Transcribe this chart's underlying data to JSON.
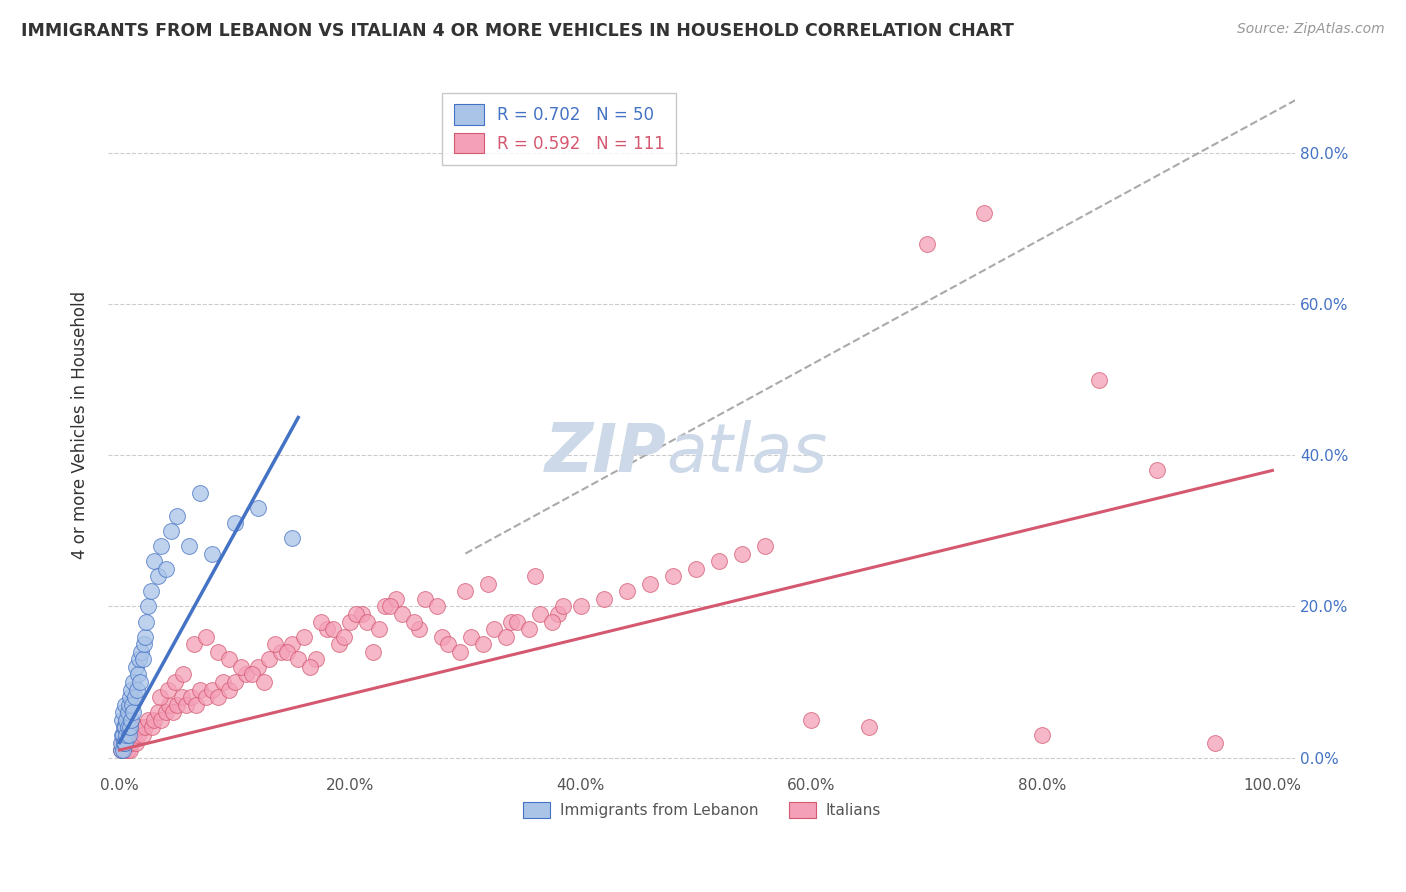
{
  "title": "IMMIGRANTS FROM LEBANON VS ITALIAN 4 OR MORE VEHICLES IN HOUSEHOLD CORRELATION CHART",
  "source": "Source: ZipAtlas.com",
  "ylabel": "4 or more Vehicles in Household",
  "xticklabels": [
    "0.0%",
    "20.0%",
    "40.0%",
    "60.0%",
    "80.0%",
    "100.0%"
  ],
  "yticklabels": [
    "0.0%",
    "20.0%",
    "40.0%",
    "60.0%",
    "80.0%"
  ],
  "legend_blue_label": "R = 0.702   N = 50",
  "legend_pink_label": "R = 0.592   N = 111",
  "legend_bottom_blue": "Immigrants from Lebanon",
  "legend_bottom_pink": "Italians",
  "blue_color": "#aac4e8",
  "blue_line_color": "#4472c4",
  "blue_edge_color": "#4472c4",
  "pink_color": "#f4a0b8",
  "pink_line_color": "#d45870",
  "pink_edge_color": "#d45870",
  "watermark_color": "#cdd9e8",
  "background_color": "#ffffff",
  "grid_color": "#cccccc",
  "dash_line_color": "#aaaaaa",
  "blue_scatter_x": [
    0.001,
    0.001,
    0.002,
    0.002,
    0.003,
    0.003,
    0.003,
    0.004,
    0.004,
    0.005,
    0.005,
    0.005,
    0.006,
    0.006,
    0.007,
    0.007,
    0.008,
    0.008,
    0.009,
    0.009,
    0.01,
    0.01,
    0.011,
    0.012,
    0.012,
    0.013,
    0.014,
    0.015,
    0.016,
    0.017,
    0.018,
    0.019,
    0.02,
    0.021,
    0.022,
    0.023,
    0.025,
    0.027,
    0.03,
    0.033,
    0.036,
    0.04,
    0.045,
    0.05,
    0.06,
    0.07,
    0.08,
    0.1,
    0.12,
    0.15
  ],
  "blue_scatter_y": [
    0.01,
    0.02,
    0.03,
    0.05,
    0.01,
    0.03,
    0.06,
    0.02,
    0.04,
    0.02,
    0.04,
    0.07,
    0.03,
    0.05,
    0.04,
    0.06,
    0.03,
    0.07,
    0.04,
    0.08,
    0.05,
    0.09,
    0.07,
    0.06,
    0.1,
    0.08,
    0.12,
    0.09,
    0.11,
    0.13,
    0.1,
    0.14,
    0.13,
    0.15,
    0.16,
    0.18,
    0.2,
    0.22,
    0.26,
    0.24,
    0.28,
    0.25,
    0.3,
    0.32,
    0.28,
    0.35,
    0.27,
    0.31,
    0.33,
    0.29
  ],
  "pink_scatter_x": [
    0.001,
    0.002,
    0.003,
    0.004,
    0.005,
    0.006,
    0.007,
    0.008,
    0.009,
    0.01,
    0.012,
    0.014,
    0.016,
    0.018,
    0.02,
    0.022,
    0.025,
    0.028,
    0.03,
    0.033,
    0.036,
    0.04,
    0.043,
    0.046,
    0.05,
    0.054,
    0.058,
    0.062,
    0.066,
    0.07,
    0.075,
    0.08,
    0.085,
    0.09,
    0.095,
    0.1,
    0.11,
    0.12,
    0.13,
    0.14,
    0.15,
    0.16,
    0.17,
    0.18,
    0.19,
    0.2,
    0.21,
    0.22,
    0.23,
    0.24,
    0.26,
    0.28,
    0.3,
    0.32,
    0.34,
    0.36,
    0.38,
    0.4,
    0.42,
    0.44,
    0.46,
    0.48,
    0.5,
    0.52,
    0.54,
    0.56,
    0.6,
    0.65,
    0.7,
    0.75,
    0.8,
    0.85,
    0.9,
    0.95,
    0.035,
    0.042,
    0.048,
    0.055,
    0.065,
    0.075,
    0.085,
    0.095,
    0.105,
    0.115,
    0.125,
    0.135,
    0.145,
    0.155,
    0.165,
    0.175,
    0.185,
    0.195,
    0.205,
    0.215,
    0.225,
    0.235,
    0.245,
    0.255,
    0.265,
    0.275,
    0.285,
    0.295,
    0.305,
    0.315,
    0.325,
    0.335,
    0.345,
    0.355,
    0.365,
    0.375,
    0.385
  ],
  "pink_scatter_y": [
    0.01,
    0.02,
    0.01,
    0.02,
    0.01,
    0.02,
    0.01,
    0.02,
    0.01,
    0.02,
    0.03,
    0.02,
    0.03,
    0.04,
    0.03,
    0.04,
    0.05,
    0.04,
    0.05,
    0.06,
    0.05,
    0.06,
    0.07,
    0.06,
    0.07,
    0.08,
    0.07,
    0.08,
    0.07,
    0.09,
    0.08,
    0.09,
    0.08,
    0.1,
    0.09,
    0.1,
    0.11,
    0.12,
    0.13,
    0.14,
    0.15,
    0.16,
    0.13,
    0.17,
    0.15,
    0.18,
    0.19,
    0.14,
    0.2,
    0.21,
    0.17,
    0.16,
    0.22,
    0.23,
    0.18,
    0.24,
    0.19,
    0.2,
    0.21,
    0.22,
    0.23,
    0.24,
    0.25,
    0.26,
    0.27,
    0.28,
    0.05,
    0.04,
    0.68,
    0.72,
    0.03,
    0.5,
    0.38,
    0.02,
    0.08,
    0.09,
    0.1,
    0.11,
    0.15,
    0.16,
    0.14,
    0.13,
    0.12,
    0.11,
    0.1,
    0.15,
    0.14,
    0.13,
    0.12,
    0.18,
    0.17,
    0.16,
    0.19,
    0.18,
    0.17,
    0.2,
    0.19,
    0.18,
    0.21,
    0.2,
    0.15,
    0.14,
    0.16,
    0.15,
    0.17,
    0.16,
    0.18,
    0.17,
    0.19,
    0.18,
    0.2
  ]
}
